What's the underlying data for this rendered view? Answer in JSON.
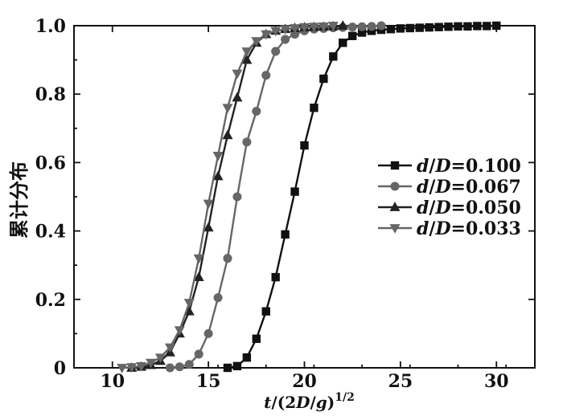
{
  "chart_data": {
    "type": "line",
    "ylabel": "累计分布",
    "xlabel": "t/(2D/g)^1/2",
    "xlim": [
      8,
      32
    ],
    "ylim": [
      0,
      1.0
    ],
    "x_ticks": [
      10,
      15,
      20,
      25,
      30
    ],
    "x_tick_labels": [
      "10",
      "15",
      "20",
      "25",
      "30"
    ],
    "y_ticks": [
      0,
      0.2,
      0.4,
      0.6,
      0.8,
      1.0
    ],
    "y_tick_labels": [
      "0",
      "0.2",
      "0.4",
      "0.6",
      "0.8",
      "1.0"
    ],
    "grid": false,
    "legend_position": "right-middle",
    "series": [
      {
        "name": "d/D=0.100",
        "marker": "square",
        "color": "#111111",
        "x": [
          16.0,
          16.5,
          17.0,
          17.5,
          18.0,
          18.5,
          19.0,
          19.5,
          20.0,
          20.5,
          21.0,
          21.5,
          22.0,
          22.5,
          23.0,
          23.5,
          24.0,
          24.5,
          25.0,
          25.5,
          26.0,
          26.5,
          27.0,
          27.5,
          28.0,
          28.5,
          29.0,
          29.5,
          30.0
        ],
        "y": [
          0.0,
          0.005,
          0.03,
          0.085,
          0.165,
          0.265,
          0.39,
          0.515,
          0.65,
          0.76,
          0.845,
          0.91,
          0.95,
          0.97,
          0.98,
          0.985,
          0.988,
          0.99,
          0.992,
          0.993,
          0.994,
          0.995,
          0.996,
          0.997,
          0.998,
          0.998,
          0.999,
          0.999,
          1.0
        ]
      },
      {
        "name": "d/D=0.067",
        "marker": "circle",
        "color": "#666666",
        "x": [
          13.0,
          13.5,
          14.0,
          14.5,
          15.0,
          15.5,
          16.0,
          16.5,
          17.0,
          17.5,
          18.0,
          18.5,
          19.0,
          19.5,
          20.0,
          20.5,
          21.0,
          21.5,
          22.0,
          22.5,
          23.0,
          23.5,
          24.0
        ],
        "y": [
          0.0,
          0.003,
          0.01,
          0.04,
          0.1,
          0.205,
          0.32,
          0.5,
          0.66,
          0.75,
          0.855,
          0.925,
          0.96,
          0.975,
          0.985,
          0.99,
          0.992,
          0.994,
          0.995,
          0.996,
          0.997,
          0.998,
          1.0
        ]
      },
      {
        "name": "d/D=0.050",
        "marker": "triangle-up",
        "color": "#222222",
        "x": [
          11.0,
          11.5,
          12.0,
          12.5,
          13.0,
          13.5,
          14.0,
          14.5,
          15.0,
          15.5,
          16.0,
          16.5,
          17.0,
          17.5,
          18.0,
          18.5,
          19.0,
          19.5,
          20.0,
          20.5,
          21.0,
          21.5,
          22.0
        ],
        "y": [
          0.0,
          0.003,
          0.008,
          0.02,
          0.045,
          0.1,
          0.165,
          0.265,
          0.41,
          0.56,
          0.68,
          0.79,
          0.9,
          0.95,
          0.975,
          0.985,
          0.99,
          0.993,
          0.995,
          0.996,
          0.997,
          0.998,
          1.0
        ]
      },
      {
        "name": "d/D=0.033",
        "marker": "triangle-down",
        "color": "#666666",
        "x": [
          10.5,
          11.0,
          11.5,
          12.0,
          12.5,
          13.0,
          13.5,
          14.0,
          14.5,
          15.0,
          15.5,
          16.0,
          16.5,
          17.0,
          17.5,
          18.0,
          18.5,
          19.0,
          19.5,
          20.0,
          20.5,
          21.0,
          21.5
        ],
        "y": [
          0.0,
          0.002,
          0.005,
          0.015,
          0.03,
          0.06,
          0.11,
          0.19,
          0.32,
          0.48,
          0.62,
          0.76,
          0.86,
          0.925,
          0.955,
          0.975,
          0.985,
          0.99,
          0.993,
          0.996,
          0.997,
          0.998,
          1.0
        ]
      }
    ]
  }
}
